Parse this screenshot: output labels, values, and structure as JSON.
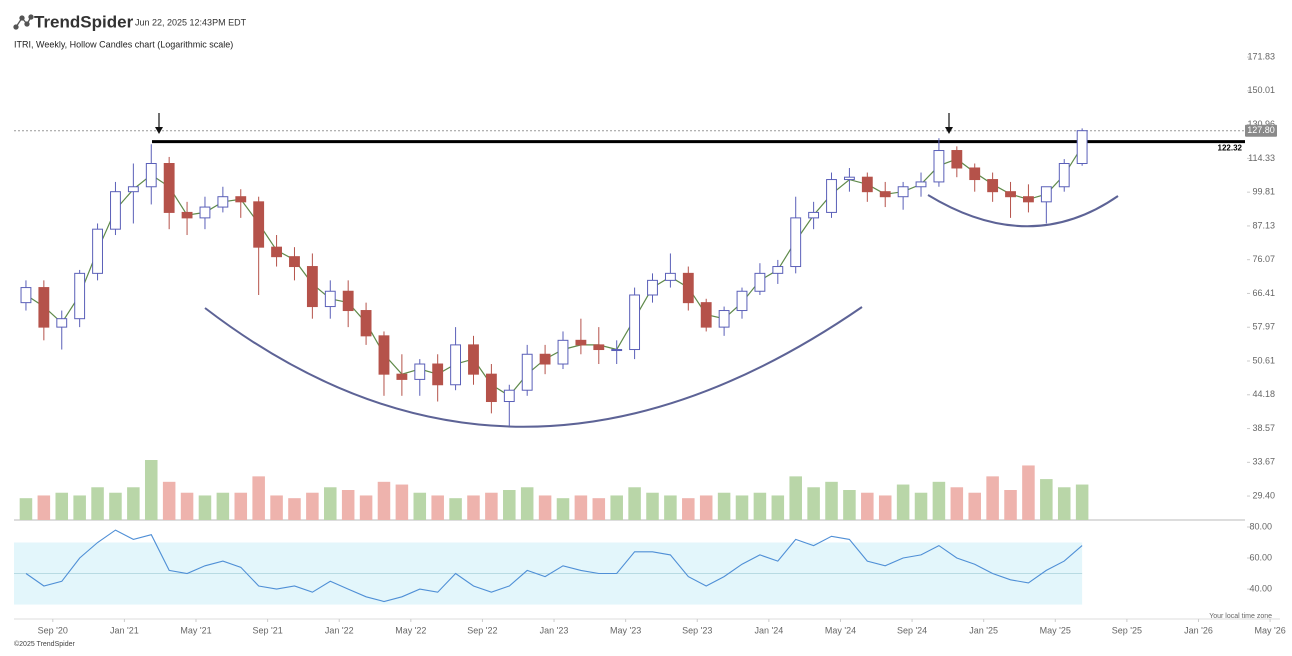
{
  "header": {
    "logo": "TrendSpider",
    "timestamp": "Jun 22, 2025 12:43PM EDT"
  },
  "chart_data": {
    "type": "candlestick",
    "title": "ITRI, Weekly, Hollow Candles chart (Logarithmic scale)",
    "x": [
      "2020-07",
      "2020-08",
      "2020-09",
      "2020-10",
      "2020-11",
      "2020-12",
      "2021-01",
      "2021-02",
      "2021-03",
      "2021-04",
      "2021-05",
      "2021-06",
      "2021-07",
      "2021-08",
      "2021-09",
      "2021-10",
      "2021-11",
      "2021-12",
      "2022-01",
      "2022-02",
      "2022-03",
      "2022-04",
      "2022-05",
      "2022-06",
      "2022-07",
      "2022-08",
      "2022-09",
      "2022-10",
      "2022-11",
      "2022-12",
      "2023-01",
      "2023-02",
      "2023-03",
      "2023-04",
      "2023-05",
      "2023-06",
      "2023-07",
      "2023-08",
      "2023-09",
      "2023-10",
      "2023-11",
      "2023-12",
      "2024-01",
      "2024-02",
      "2024-03",
      "2024-04",
      "2024-05",
      "2024-06",
      "2024-07",
      "2024-08",
      "2024-09",
      "2024-10",
      "2024-11",
      "2024-12",
      "2025-01",
      "2025-02",
      "2025-03",
      "2025-04",
      "2025-05",
      "2025-06"
    ],
    "open": [
      64,
      68,
      58,
      60,
      72,
      86,
      100,
      102,
      112,
      92,
      90,
      94,
      98,
      96,
      80,
      77,
      74,
      63,
      67,
      62,
      56,
      48,
      47,
      50,
      46,
      54,
      48,
      43,
      45,
      52,
      50,
      55,
      54,
      53,
      53,
      66,
      70,
      72,
      64,
      58,
      62,
      67,
      72,
      74,
      90,
      92,
      105,
      106,
      100,
      98,
      102,
      104,
      118,
      110,
      105,
      100,
      98,
      96,
      102,
      112
    ],
    "high": [
      70,
      70,
      62,
      73,
      88,
      104,
      112,
      121,
      115,
      96,
      98,
      102,
      101,
      98,
      84,
      80,
      78,
      70,
      70,
      64,
      57,
      52,
      51,
      52,
      58,
      56,
      50,
      46,
      54,
      54,
      57,
      60,
      58,
      55,
      68,
      72,
      78,
      74,
      65,
      63,
      68,
      75,
      76,
      98,
      96,
      108,
      110,
      108,
      104,
      104,
      108,
      124,
      120,
      112,
      108,
      104,
      103,
      102,
      114,
      129
    ],
    "low": [
      62,
      55,
      53,
      58,
      70,
      84,
      88,
      95,
      86,
      84,
      86,
      92,
      90,
      66,
      74,
      70,
      60,
      60,
      58,
      54,
      44,
      44,
      44,
      43,
      45,
      46,
      41,
      39,
      44,
      48,
      49,
      52,
      50,
      50,
      51,
      64,
      68,
      62,
      57,
      56,
      60,
      66,
      69,
      72,
      86,
      90,
      100,
      96,
      94,
      93,
      98,
      102,
      106,
      100,
      96,
      90,
      92,
      88,
      100,
      111
    ],
    "close": [
      68,
      58,
      60,
      72,
      86,
      100,
      102,
      112,
      92,
      90,
      94,
      98,
      96,
      80,
      77,
      74,
      63,
      67,
      62,
      56,
      48,
      47,
      50,
      46,
      54,
      48,
      43,
      45,
      52,
      50,
      55,
      54,
      53,
      53,
      66,
      70,
      72,
      64,
      58,
      62,
      67,
      72,
      74,
      90,
      92,
      105,
      106,
      100,
      98,
      102,
      104,
      118,
      110,
      105,
      100,
      98,
      96,
      102,
      112,
      127.8
    ],
    "up_color": "#5a5fb8",
    "down_color": "#b5524a",
    "log_scale": true,
    "ylim": [
      26.7,
      176.8
    ],
    "yticks": [
      171.83,
      150.01,
      130.96,
      114.33,
      99.81,
      87.13,
      76.07,
      66.41,
      57.97,
      50.61,
      44.18,
      38.57,
      33.67,
      {
        "value": 29.4,
        "label": "29.40"
      }
    ],
    "xlim": [
      "2020-07",
      "2026-06"
    ],
    "xticks": [
      {
        "value": "2020-09",
        "label": "Sep '20"
      },
      {
        "value": "2021-01",
        "label": "Jan '21"
      },
      {
        "value": "2021-05",
        "label": "May '21"
      },
      {
        "value": "2021-09",
        "label": "Sep '21"
      },
      {
        "value": "2022-01",
        "label": "Jan '22"
      },
      {
        "value": "2022-05",
        "label": "May '22"
      },
      {
        "value": "2022-09",
        "label": "Sep '22"
      },
      {
        "value": "2023-01",
        "label": "Jan '23"
      },
      {
        "value": "2023-05",
        "label": "May '23"
      },
      {
        "value": "2023-09",
        "label": "Sep '23"
      },
      {
        "value": "2024-01",
        "label": "Jan '24"
      },
      {
        "value": "2024-05",
        "label": "May '24"
      },
      {
        "value": "2024-09",
        "label": "Sep '24"
      },
      {
        "value": "2025-01",
        "label": "Jan '25"
      },
      {
        "value": "2025-05",
        "label": "May '25"
      },
      {
        "value": "2025-09",
        "label": "Sep '25"
      },
      {
        "value": "2026-01",
        "label": "Jan '26"
      },
      {
        "value": "2026-05",
        "label": "May '26"
      }
    ],
    "moving_average": {
      "color": "#5f8a4a",
      "values": [
        66,
        63,
        59,
        66,
        79,
        93,
        101,
        107,
        102,
        91,
        92,
        96,
        97,
        88,
        79,
        76,
        69,
        65,
        64,
        59,
        52,
        48,
        49,
        48,
        50,
        51,
        46,
        44,
        48,
        51,
        53,
        54,
        54,
        53,
        60,
        68,
        71,
        68,
        61,
        60,
        64,
        70,
        73,
        82,
        91,
        99,
        105,
        103,
        99,
        100,
        103,
        111,
        114,
        108,
        103,
        99,
        97,
        99,
        107,
        120
      ]
    },
    "resistance": 122.32,
    "last_price": {
      "value": 127.8,
      "label": "127.80"
    },
    "volume": {
      "up_color": "#b9d6a8",
      "down_color": "#eeb3ad",
      "values": [
        8,
        9,
        10,
        9,
        12,
        10,
        12,
        22,
        14,
        10,
        9,
        10,
        10,
        16,
        9,
        8,
        10,
        12,
        11,
        9,
        14,
        13,
        10,
        9,
        8,
        9,
        10,
        11,
        12,
        9,
        8,
        9,
        8,
        9,
        12,
        10,
        9,
        8,
        9,
        10,
        9,
        10,
        9,
        16,
        12,
        14,
        11,
        10,
        9,
        13,
        10,
        14,
        12,
        10,
        16,
        11,
        20,
        15,
        12,
        13
      ]
    },
    "rsi": {
      "color": "#4f8fd6",
      "band_color": "#e3f6fb",
      "band": [
        30,
        70
      ],
      "midline": 50,
      "ylim": [
        22,
        84.5
      ],
      "yticks": [
        {
          "value": 80,
          "label": "80.00"
        },
        {
          "value": 60,
          "label": "60.00"
        },
        {
          "value": 40,
          "label": "40.00"
        }
      ],
      "values": [
        50,
        42,
        45,
        60,
        70,
        78,
        72,
        75,
        52,
        50,
        55,
        58,
        54,
        42,
        40,
        42,
        38,
        45,
        40,
        35,
        32,
        35,
        40,
        38,
        50,
        42,
        38,
        42,
        52,
        48,
        55,
        52,
        50,
        50,
        64,
        64,
        62,
        48,
        42,
        48,
        56,
        62,
        58,
        72,
        68,
        74,
        72,
        58,
        55,
        60,
        62,
        68,
        60,
        56,
        50,
        46,
        44,
        52,
        58,
        68
      ]
    }
  },
  "footer": {
    "copyright": "©2025 TrendSpider",
    "timezone": "Your local time zone"
  }
}
